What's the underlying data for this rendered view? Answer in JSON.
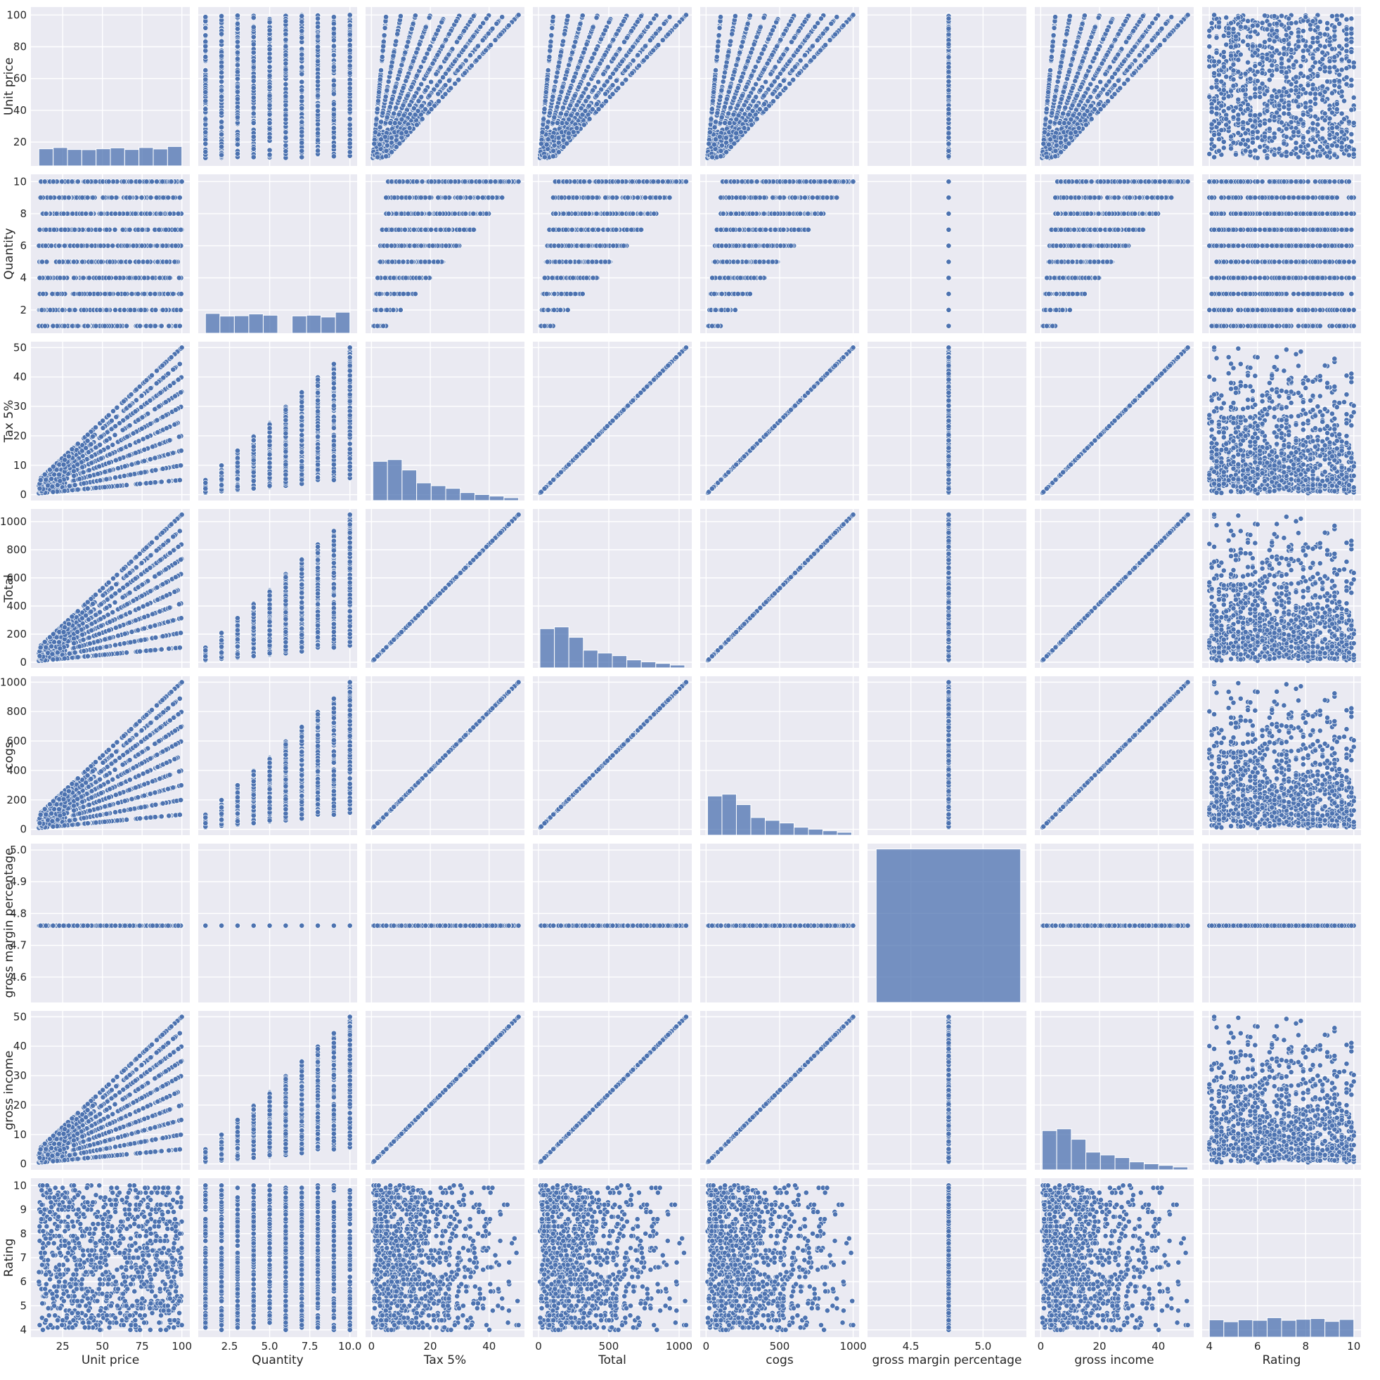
{
  "chart_data": {
    "type": "scatter",
    "variables": [
      "Unit price",
      "Quantity",
      "Tax 5%",
      "Total",
      "cogs",
      "gross margin percentage",
      "gross income",
      "Rating"
    ],
    "axes": {
      "Unit price": {
        "lim": [
          5,
          105
        ],
        "ticks": [
          20,
          40,
          60,
          80,
          100
        ],
        "xticks": [
          25,
          50,
          75,
          100
        ],
        "xtick_labels": [
          "25",
          "50",
          "75",
          "100"
        ]
      },
      "Quantity": {
        "lim": [
          0.55,
          10.45
        ],
        "ticks": [
          2,
          4,
          6,
          8,
          10
        ],
        "xticks": [
          2.5,
          5.0,
          7.5,
          10.0
        ],
        "xtick_labels": [
          "2.5",
          "5.0",
          "7.5",
          "10.0"
        ]
      },
      "Tax 5%": {
        "lim": [
          -2,
          52
        ],
        "ticks": [
          0,
          10,
          20,
          30,
          40,
          50
        ],
        "xticks": [
          0,
          20,
          40
        ],
        "xtick_labels": [
          "0",
          "20",
          "40"
        ]
      },
      "Total": {
        "lim": [
          -40,
          1090
        ],
        "ticks": [
          0,
          200,
          400,
          600,
          800,
          1000
        ],
        "xticks": [
          0,
          500,
          1000
        ],
        "xtick_labels": [
          "0",
          "500",
          "1000"
        ]
      },
      "cogs": {
        "lim": [
          -40,
          1040
        ],
        "ticks": [
          0,
          200,
          400,
          600,
          800,
          1000
        ],
        "xticks": [
          0,
          500,
          1000
        ],
        "xtick_labels": [
          "0",
          "500",
          "1000"
        ]
      },
      "gross margin percentage": {
        "lim": [
          4.52,
          5.02
        ],
        "ticks": [
          4.6,
          4.7,
          4.8,
          4.9,
          5.0
        ],
        "xlim": [
          4.2,
          5.3
        ],
        "xticks": [
          4.5,
          5.0
        ],
        "xtick_labels": [
          "4.5",
          "5.0"
        ]
      },
      "gross income": {
        "lim": [
          -2,
          52
        ],
        "ticks": [
          0,
          10,
          20,
          30,
          40,
          50
        ],
        "xticks": [
          0,
          20,
          40
        ],
        "xtick_labels": [
          "0",
          "20",
          "40"
        ]
      },
      "Rating": {
        "lim": [
          3.7,
          10.3
        ],
        "ticks": [
          4,
          5,
          6,
          7,
          8,
          9,
          10
        ],
        "xticks": [
          4,
          6,
          8,
          10
        ],
        "xtick_labels": [
          "4",
          "6",
          "8",
          "10"
        ]
      }
    },
    "histograms": {
      "Unit price": {
        "bins": [
          10,
          19,
          28,
          37,
          46,
          55,
          64,
          73,
          82,
          91,
          100
        ],
        "counts": [
          97,
          104,
          93,
          92,
          97,
          102,
          93,
          104,
          96,
          110
        ],
        "max": 900
      },
      "Quantity": {
        "bins": [
          1,
          1.9,
          2.8,
          3.7,
          4.6,
          5.5,
          6.4,
          7.3,
          8.2,
          9.1,
          10
        ],
        "counts": [
          112,
          97,
          99,
          109,
          102,
          0,
          98,
          102,
          92,
          119
        ],
        "max": 900
      },
      "Tax 5%": {
        "bins": [
          0.5,
          5.45,
          10.4,
          15.35,
          20.3,
          25.25,
          30.2,
          35.15,
          40.1,
          45.05,
          50
        ],
        "counts": [
          222,
          232,
          173,
          100,
          84,
          69,
          45,
          34,
          25,
          16
        ],
        "max": 900
      },
      "Total": {
        "bins": [
          10,
          113,
          216,
          319,
          422,
          525,
          628,
          731,
          834,
          937,
          1040
        ],
        "counts": [
          222,
          232,
          173,
          100,
          84,
          69,
          45,
          34,
          25,
          16
        ],
        "max": 900
      },
      "cogs": {
        "bins": [
          10,
          108,
          206,
          304,
          402,
          500,
          598,
          696,
          794,
          892,
          990
        ],
        "counts": [
          222,
          232,
          173,
          100,
          84,
          69,
          45,
          34,
          25,
          16
        ],
        "max": 900
      },
      "gross margin percentage": {
        "bins": [
          4.26,
          5.26
        ],
        "counts": [
          1000
        ],
        "max": 1035
      },
      "gross income": {
        "bins": [
          0.5,
          5.45,
          10.4,
          15.35,
          20.3,
          25.25,
          30.2,
          35.15,
          40.1,
          45.05,
          50
        ],
        "counts": [
          222,
          232,
          173,
          100,
          84,
          69,
          45,
          34,
          25,
          16
        ],
        "max": 900
      },
      "Rating": {
        "bins": [
          4,
          4.6,
          5.2,
          5.8,
          6.4,
          7.0,
          7.6,
          8.2,
          8.8,
          9.4,
          10
        ],
        "counts": [
          98,
          87,
          98,
          95,
          110,
          95,
          101,
          105,
          89,
          100
        ],
        "max": 900
      }
    },
    "constants": {
      "gross margin percentage": 4.7619
    },
    "generator": {
      "n": 1000,
      "unit_price": [
        10,
        100
      ],
      "quantity": [
        1,
        10
      ],
      "tax_rate": 0.05,
      "rating": [
        4,
        10
      ]
    },
    "grid": true,
    "legend": "none"
  }
}
